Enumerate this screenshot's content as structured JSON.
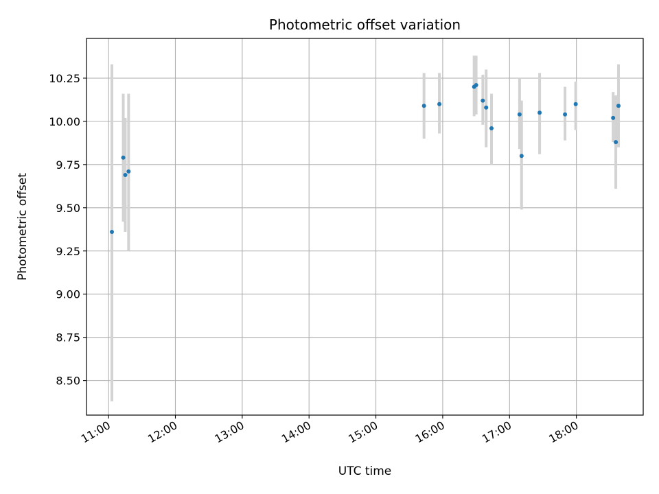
{
  "chart_data": {
    "type": "scatter",
    "title": "Photometric offset variation",
    "xlabel": "UTC time",
    "ylabel": "Photometric offset",
    "x_unit": "UTC time of day (hours)",
    "xlim": [
      10.67,
      19.0
    ],
    "ylim": [
      8.3,
      10.48
    ],
    "grid": true,
    "xticks": [
      {
        "value": 11,
        "label": "11:00"
      },
      {
        "value": 12,
        "label": "12:00"
      },
      {
        "value": 13,
        "label": "13:00"
      },
      {
        "value": 14,
        "label": "14:00"
      },
      {
        "value": 15,
        "label": "15:00"
      },
      {
        "value": 16,
        "label": "16:00"
      },
      {
        "value": 17,
        "label": "17:00"
      },
      {
        "value": 18,
        "label": "18:00"
      }
    ],
    "yticks": [
      {
        "value": 8.5,
        "label": "8.50"
      },
      {
        "value": 8.75,
        "label": "8.75"
      },
      {
        "value": 9.0,
        "label": "9.00"
      },
      {
        "value": 9.25,
        "label": "9.25"
      },
      {
        "value": 9.5,
        "label": "9.50"
      },
      {
        "value": 9.75,
        "label": "9.75"
      },
      {
        "value": 10.0,
        "label": "10.00"
      },
      {
        "value": 10.25,
        "label": "10.25"
      }
    ],
    "point_color": "#1f77b4",
    "errorbar_color": "#d3d3d3",
    "points": [
      {
        "x": 11.05,
        "y": 9.36,
        "ylow": 8.38,
        "yhigh": 10.33
      },
      {
        "x": 11.22,
        "y": 9.79,
        "ylow": 9.42,
        "yhigh": 10.16
      },
      {
        "x": 11.25,
        "y": 9.69,
        "ylow": 9.36,
        "yhigh": 10.02
      },
      {
        "x": 11.3,
        "y": 9.71,
        "ylow": 9.25,
        "yhigh": 10.16
      },
      {
        "x": 15.72,
        "y": 10.09,
        "ylow": 9.9,
        "yhigh": 10.28
      },
      {
        "x": 15.95,
        "y": 10.1,
        "ylow": 9.93,
        "yhigh": 10.28
      },
      {
        "x": 16.47,
        "y": 10.2,
        "ylow": 10.03,
        "yhigh": 10.38
      },
      {
        "x": 16.5,
        "y": 10.21,
        "ylow": 10.04,
        "yhigh": 10.38
      },
      {
        "x": 16.6,
        "y": 10.12,
        "ylow": 9.98,
        "yhigh": 10.27
      },
      {
        "x": 16.65,
        "y": 10.08,
        "ylow": 9.85,
        "yhigh": 10.3
      },
      {
        "x": 16.73,
        "y": 9.96,
        "ylow": 9.75,
        "yhigh": 10.16
      },
      {
        "x": 17.15,
        "y": 10.04,
        "ylow": 9.84,
        "yhigh": 10.25
      },
      {
        "x": 17.18,
        "y": 9.8,
        "ylow": 9.49,
        "yhigh": 10.12
      },
      {
        "x": 17.45,
        "y": 10.05,
        "ylow": 9.81,
        "yhigh": 10.28
      },
      {
        "x": 17.83,
        "y": 10.04,
        "ylow": 9.89,
        "yhigh": 10.2
      },
      {
        "x": 17.99,
        "y": 10.1,
        "ylow": 9.95,
        "yhigh": 10.23
      },
      {
        "x": 18.55,
        "y": 10.02,
        "ylow": 9.88,
        "yhigh": 10.17
      },
      {
        "x": 18.59,
        "y": 9.88,
        "ylow": 9.61,
        "yhigh": 10.15
      },
      {
        "x": 18.63,
        "y": 10.09,
        "ylow": 9.85,
        "yhigh": 10.33
      }
    ]
  }
}
